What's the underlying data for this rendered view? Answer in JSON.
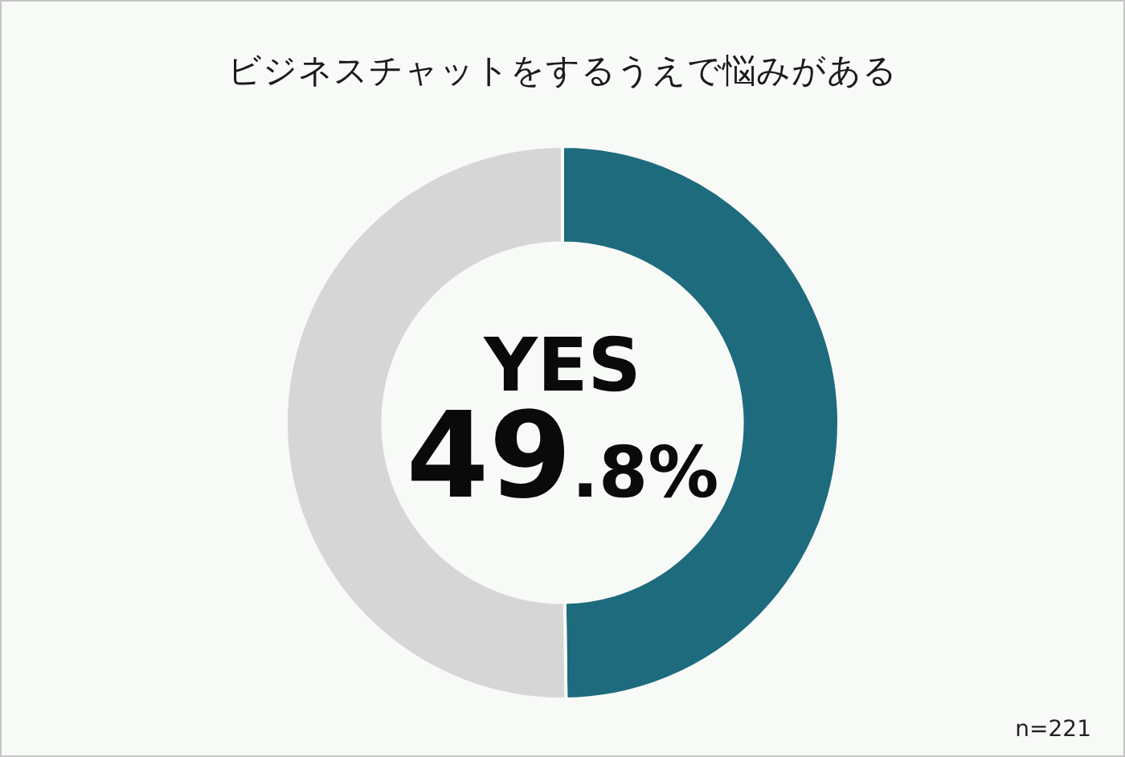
{
  "chart_data": {
    "type": "donut",
    "title": "ビジネスチャットをするうえで悩みがある",
    "categories": [
      "YES",
      null
    ],
    "values": [
      49.8,
      50.2
    ],
    "colors": [
      "#1e6b7e",
      "#d6d6d6"
    ],
    "value_labels": [
      "49.8%",
      null
    ],
    "annotations": [
      "n=221"
    ]
  }
}
